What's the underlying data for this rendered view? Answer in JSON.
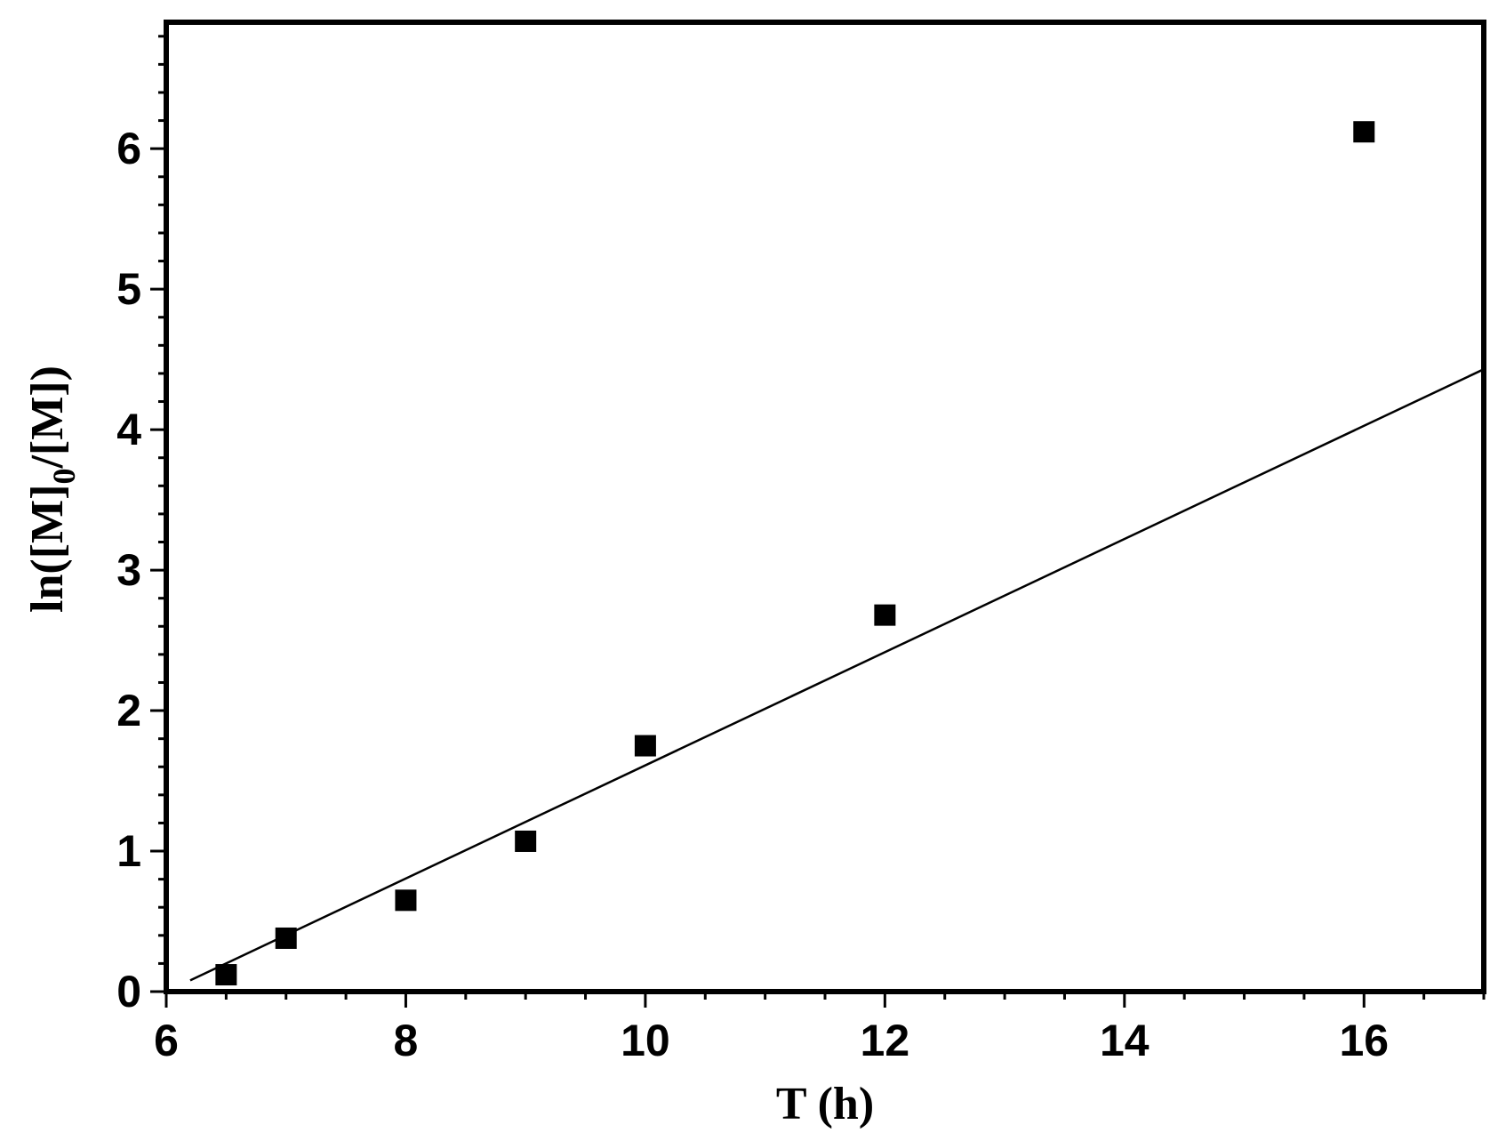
{
  "chart_data": {
    "type": "scatter",
    "xlabel": "T (h)",
    "ylabel_main": "ln([M]",
    "ylabel_sub": "0",
    "ylabel_end": "/[M])",
    "xlim": [
      6,
      17
    ],
    "ylim": [
      0,
      6.9
    ],
    "x_ticks": [
      6,
      8,
      10,
      12,
      14,
      16
    ],
    "y_ticks": [
      0,
      1,
      2,
      3,
      4,
      5,
      6
    ],
    "x_tick_labels": [
      "6",
      "8",
      "10",
      "12",
      "14",
      "16"
    ],
    "y_tick_labels": [
      "0",
      "1",
      "2",
      "3",
      "4",
      "5",
      "6"
    ],
    "series": [
      {
        "marker": "square",
        "color": "#000000",
        "x": [
          6.5,
          7,
          8,
          9,
          10,
          12,
          16
        ],
        "y": [
          0.12,
          0.38,
          0.65,
          1.07,
          1.75,
          2.68,
          6.12
        ]
      }
    ],
    "fit_line": {
      "color": "#000000",
      "x": [
        6.2,
        17
      ],
      "y": [
        0.08,
        4.43
      ]
    },
    "grid": false,
    "legend": "none"
  }
}
